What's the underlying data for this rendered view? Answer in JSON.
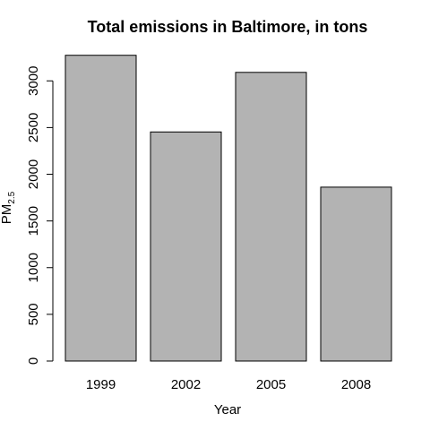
{
  "chart_data": {
    "type": "bar",
    "title": "Total emissions in Baltimore, in tons",
    "xlabel": "Year",
    "ylabel": "PM",
    "ylabel_subscript": "2.5",
    "categories": [
      "1999",
      "2002",
      "2005",
      "2008"
    ],
    "values": [
      3274,
      2453,
      3091,
      1862
    ],
    "ylim": [
      0,
      3300
    ],
    "yticks": [
      0,
      500,
      1000,
      1500,
      2000,
      2500,
      3000
    ],
    "ytick_labels": [
      "0",
      "500",
      "1000",
      "1500",
      "2000",
      "2500",
      "3000"
    ],
    "bar_color": "#b3b3b3",
    "grid": false,
    "legend": "none"
  }
}
